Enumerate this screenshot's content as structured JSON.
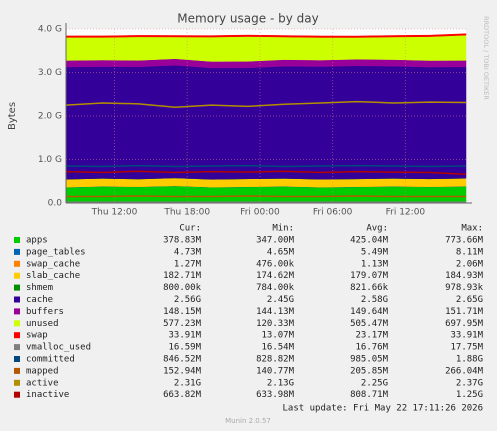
{
  "chart_data": {
    "type": "area",
    "title": "Memory usage - by day",
    "y_label": "Bytes",
    "side_text": "RRDTOOL / TOBI OETIKER",
    "x": [
      8,
      11,
      14,
      17,
      20,
      23,
      26,
      29,
      32,
      35,
      38,
      41
    ],
    "xlim": [
      8,
      41
    ],
    "xticks": [
      {
        "value": 12,
        "label": "Thu 12:00"
      },
      {
        "value": 18,
        "label": "Thu 18:00"
      },
      {
        "value": 24,
        "label": "Fri 00:00"
      },
      {
        "value": 30,
        "label": "Fri 06:00"
      },
      {
        "value": 36,
        "label": "Fri 12:00"
      }
    ],
    "ylim": [
      0,
      4
    ],
    "yticks": [
      {
        "value": 0,
        "label": "0.0"
      },
      {
        "value": 1,
        "label": "1.0 G"
      },
      {
        "value": 2,
        "label": "2.0 G"
      },
      {
        "value": 3,
        "label": "3.0 G"
      },
      {
        "value": 4,
        "label": "4.0 G"
      }
    ],
    "grid": true,
    "stat_headers": [
      "Cur:",
      "Min:",
      "Avg:",
      "Max:"
    ],
    "series": [
      {
        "name": "apps",
        "color": "#00cc00",
        "stack": true,
        "stats": [
          "378.83M",
          "347.00M",
          "425.04M",
          "773.66M"
        ],
        "values": [
          0.36,
          0.38,
          0.37,
          0.39,
          0.36,
          0.37,
          0.38,
          0.36,
          0.37,
          0.38,
          0.37,
          0.38
        ]
      },
      {
        "name": "page_tables",
        "color": "#0066b3",
        "stack": true,
        "stats": [
          "4.73M",
          "4.65M",
          "5.49M",
          "8.11M"
        ],
        "values": [
          0.005,
          0.005,
          0.005,
          0.005,
          0.005,
          0.005,
          0.005,
          0.005,
          0.005,
          0.005,
          0.005,
          0.005
        ]
      },
      {
        "name": "swap_cache",
        "color": "#ff8000",
        "stack": true,
        "stats": [
          "1.27M",
          "476.00k",
          "1.13M",
          "2.06M"
        ],
        "values": [
          0.001,
          0.001,
          0.001,
          0.001,
          0.001,
          0.001,
          0.001,
          0.001,
          0.001,
          0.001,
          0.001,
          0.001
        ]
      },
      {
        "name": "slab_cache",
        "color": "#ffcc00",
        "stack": true,
        "stats": [
          "182.71M",
          "174.62M",
          "179.07M",
          "184.93M"
        ],
        "values": [
          0.18,
          0.18,
          0.175,
          0.18,
          0.178,
          0.18,
          0.179,
          0.18,
          0.178,
          0.18,
          0.179,
          0.183
        ]
      },
      {
        "name": "shmem",
        "color": "#008f00",
        "stack": true,
        "stats": [
          "800.00k",
          "784.00k",
          "821.66k",
          "978.93k"
        ],
        "values": [
          0.0008,
          0.0008,
          0.0008,
          0.0008,
          0.0008,
          0.0008,
          0.0008,
          0.0008,
          0.0008,
          0.0008,
          0.0008,
          0.0008
        ]
      },
      {
        "name": "cache",
        "color": "#330099",
        "stack": true,
        "stats": [
          "2.56G",
          "2.45G",
          "2.58G",
          "2.65G"
        ],
        "values": [
          2.58,
          2.57,
          2.58,
          2.59,
          2.56,
          2.55,
          2.58,
          2.59,
          2.6,
          2.58,
          2.57,
          2.56
        ]
      },
      {
        "name": "buffers",
        "color": "#990099",
        "stack": true,
        "stats": [
          "148.15M",
          "144.13M",
          "149.64M",
          "151.71M"
        ],
        "values": [
          0.15,
          0.15,
          0.148,
          0.15,
          0.149,
          0.15,
          0.15,
          0.149,
          0.15,
          0.15,
          0.149,
          0.148
        ]
      },
      {
        "name": "unused",
        "color": "#ccff00",
        "stack": true,
        "stats": [
          "577.23M",
          "120.33M",
          "505.47M",
          "697.95M"
        ],
        "values": [
          0.53,
          0.52,
          0.54,
          0.5,
          0.56,
          0.57,
          0.52,
          0.52,
          0.5,
          0.52,
          0.55,
          0.58
        ]
      },
      {
        "name": "swap",
        "color": "#ff0000",
        "stack": true,
        "stats": [
          "33.91M",
          "13.07M",
          "23.17M",
          "33.91M"
        ],
        "values": [
          0.034,
          0.034,
          0.034,
          0.034,
          0.034,
          0.034,
          0.034,
          0.034,
          0.034,
          0.034,
          0.034,
          0.034
        ]
      },
      {
        "name": "vmalloc_used",
        "color": "#808080",
        "stack": false,
        "stats": [
          "16.59M",
          "16.54M",
          "16.76M",
          "17.75M"
        ],
        "values": [
          0.017,
          0.017,
          0.017,
          0.017,
          0.017,
          0.017,
          0.017,
          0.017,
          0.017,
          0.017,
          0.017,
          0.017
        ]
      },
      {
        "name": "committed",
        "color": "#00487d",
        "stack": false,
        "stats": [
          "846.52M",
          "828.82M",
          "985.05M",
          "1.88G"
        ],
        "values": [
          0.85,
          0.84,
          0.86,
          0.84,
          0.85,
          0.86,
          0.84,
          0.85,
          0.86,
          0.85,
          0.84,
          0.85
        ]
      },
      {
        "name": "mapped",
        "color": "#b35a00",
        "stack": false,
        "stats": [
          "152.94M",
          "140.77M",
          "205.85M",
          "266.04M"
        ],
        "values": [
          0.15,
          0.15,
          0.16,
          0.15,
          0.15,
          0.16,
          0.15,
          0.15,
          0.16,
          0.15,
          0.15,
          0.15
        ]
      },
      {
        "name": "active",
        "color": "#b38f00",
        "stack": false,
        "stats": [
          "2.31G",
          "2.13G",
          "2.25G",
          "2.37G"
        ],
        "values": [
          2.25,
          2.3,
          2.28,
          2.2,
          2.25,
          2.22,
          2.27,
          2.3,
          2.33,
          2.3,
          2.32,
          2.31
        ]
      },
      {
        "name": "inactive",
        "color": "#b30000",
        "stack": false,
        "stats": [
          "663.82M",
          "633.98M",
          "808.71M",
          "1.25G"
        ],
        "values": [
          0.72,
          0.7,
          0.73,
          0.7,
          0.72,
          0.71,
          0.73,
          0.7,
          0.72,
          0.71,
          0.7,
          0.66
        ]
      }
    ],
    "last_update": "Last update: Fri May 22 17:11:26 2026",
    "footer": "Munin 2.0.57"
  }
}
